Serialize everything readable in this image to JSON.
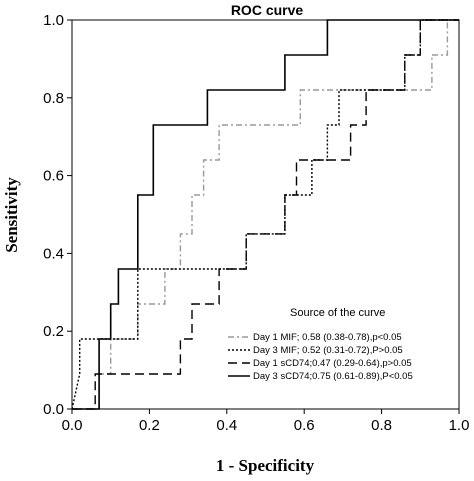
{
  "chart_data": {
    "type": "line",
    "title": "ROC curve",
    "xlabel": "1 - Specificity",
    "ylabel": "Sensitivity",
    "xlim": [
      0,
      1
    ],
    "ylim": [
      0,
      1
    ],
    "xticks": [
      "0.0",
      "0.2",
      "0.4",
      "0.6",
      "0.8",
      "1.0"
    ],
    "yticks": [
      "0.0",
      "0.2",
      "0.4",
      "0.6",
      "0.8",
      "1.0"
    ],
    "grid": false,
    "legend_title": "Source of the curve",
    "legend_position": "bottom-right",
    "series": [
      {
        "name": "Day 1 MIF; 0.58 (0.38-0.78),p<0.05",
        "style": "dash-dot",
        "color": "#999999",
        "points": [
          [
            0,
            0
          ],
          [
            0.07,
            0
          ],
          [
            0.07,
            0.09
          ],
          [
            0.1,
            0.09
          ],
          [
            0.1,
            0.18
          ],
          [
            0.17,
            0.18
          ],
          [
            0.17,
            0.27
          ],
          [
            0.24,
            0.27
          ],
          [
            0.24,
            0.36
          ],
          [
            0.28,
            0.36
          ],
          [
            0.28,
            0.45
          ],
          [
            0.31,
            0.45
          ],
          [
            0.31,
            0.55
          ],
          [
            0.34,
            0.55
          ],
          [
            0.34,
            0.64
          ],
          [
            0.38,
            0.64
          ],
          [
            0.38,
            0.73
          ],
          [
            0.59,
            0.73
          ],
          [
            0.59,
            0.82
          ],
          [
            0.93,
            0.82
          ],
          [
            0.93,
            0.91
          ],
          [
            0.97,
            0.91
          ],
          [
            0.97,
            1.0
          ],
          [
            1.0,
            1.0
          ]
        ]
      },
      {
        "name": "Day 3 MIF; 0.52 (0.31-0.72),P>0.05",
        "style": "dotted",
        "color": "#000000",
        "points": [
          [
            0,
            0
          ],
          [
            0.02,
            0.09
          ],
          [
            0.02,
            0.18
          ],
          [
            0.17,
            0.18
          ],
          [
            0.17,
            0.36
          ],
          [
            0.45,
            0.36
          ],
          [
            0.45,
            0.45
          ],
          [
            0.55,
            0.45
          ],
          [
            0.55,
            0.55
          ],
          [
            0.62,
            0.55
          ],
          [
            0.62,
            0.64
          ],
          [
            0.66,
            0.64
          ],
          [
            0.66,
            0.73
          ],
          [
            0.69,
            0.73
          ],
          [
            0.69,
            0.82
          ],
          [
            0.86,
            0.82
          ],
          [
            0.86,
            0.91
          ],
          [
            0.9,
            0.91
          ],
          [
            0.9,
            1.0
          ],
          [
            1.0,
            1.0
          ]
        ]
      },
      {
        "name": "Day 1 sCD74;0.47 (0.29-0.64),p>0.05",
        "style": "dashed",
        "color": "#000000",
        "points": [
          [
            0,
            0
          ],
          [
            0.06,
            0
          ],
          [
            0.06,
            0.09
          ],
          [
            0.28,
            0.09
          ],
          [
            0.28,
            0.18
          ],
          [
            0.31,
            0.18
          ],
          [
            0.31,
            0.27
          ],
          [
            0.38,
            0.27
          ],
          [
            0.38,
            0.36
          ],
          [
            0.45,
            0.36
          ],
          [
            0.45,
            0.45
          ],
          [
            0.55,
            0.45
          ],
          [
            0.55,
            0.55
          ],
          [
            0.58,
            0.55
          ],
          [
            0.58,
            0.64
          ],
          [
            0.72,
            0.64
          ],
          [
            0.72,
            0.73
          ],
          [
            0.76,
            0.73
          ],
          [
            0.76,
            0.82
          ],
          [
            0.86,
            0.82
          ],
          [
            0.86,
            0.91
          ],
          [
            0.9,
            0.91
          ],
          [
            0.9,
            1.0
          ],
          [
            1.0,
            1.0
          ]
        ]
      },
      {
        "name": "Day 3 sCD74;0.75 (0.61-0.89),P<0.05",
        "style": "solid",
        "color": "#000000",
        "points": [
          [
            0,
            0
          ],
          [
            0.07,
            0
          ],
          [
            0.07,
            0.18
          ],
          [
            0.1,
            0.18
          ],
          [
            0.1,
            0.27
          ],
          [
            0.12,
            0.27
          ],
          [
            0.12,
            0.36
          ],
          [
            0.17,
            0.36
          ],
          [
            0.17,
            0.55
          ],
          [
            0.21,
            0.55
          ],
          [
            0.21,
            0.73
          ],
          [
            0.35,
            0.73
          ],
          [
            0.35,
            0.82
          ],
          [
            0.55,
            0.82
          ],
          [
            0.55,
            0.91
          ],
          [
            0.66,
            0.91
          ],
          [
            0.66,
            1.0
          ],
          [
            1.0,
            1.0
          ]
        ]
      }
    ]
  }
}
